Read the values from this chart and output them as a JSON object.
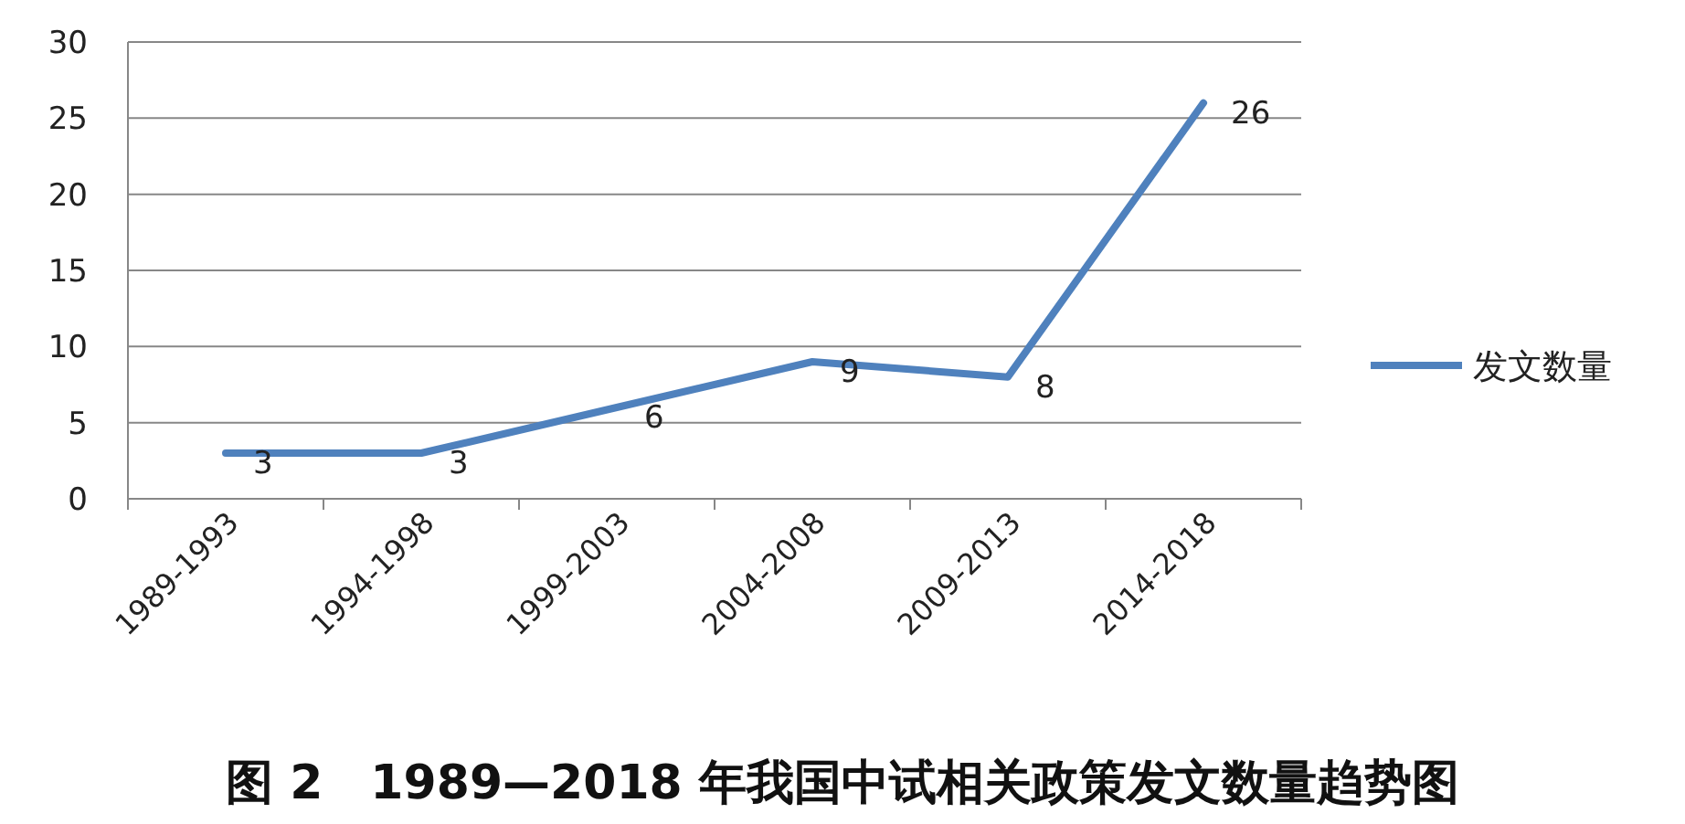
{
  "chart_data": {
    "type": "line",
    "title": "图 2　1989—2018 年我国中试相关政策发文数量趋势图",
    "categories": [
      "1989-1993",
      "1994-1998",
      "1999-2003",
      "2004-2008",
      "2009-2013",
      "2014-2018"
    ],
    "series": [
      {
        "name": "发文数量",
        "color": "#4f81bd",
        "values": [
          3,
          3,
          6,
          9,
          8,
          26
        ]
      }
    ],
    "ylim": [
      0,
      30
    ],
    "yticks": [
      0,
      5,
      10,
      15,
      20,
      25,
      30
    ],
    "grid": "y",
    "legend": "right",
    "data_labels": true,
    "marker": "none",
    "line_style": "solid"
  }
}
